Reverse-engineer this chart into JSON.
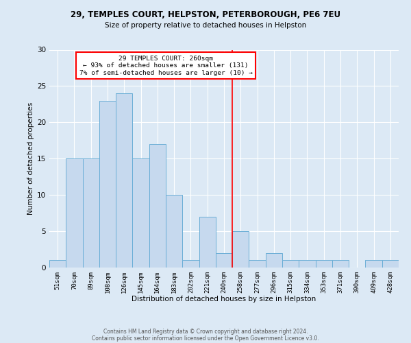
{
  "title1": "29, TEMPLES COURT, HELPSTON, PETERBOROUGH, PE6 7EU",
  "title2": "Size of property relative to detached houses in Helpston",
  "xlabel": "Distribution of detached houses by size in Helpston",
  "ylabel": "Number of detached properties",
  "bar_labels": [
    "51sqm",
    "70sqm",
    "89sqm",
    "108sqm",
    "126sqm",
    "145sqm",
    "164sqm",
    "183sqm",
    "202sqm",
    "221sqm",
    "240sqm",
    "258sqm",
    "277sqm",
    "296sqm",
    "315sqm",
    "334sqm",
    "353sqm",
    "371sqm",
    "390sqm",
    "409sqm",
    "428sqm"
  ],
  "bar_values": [
    1,
    15,
    15,
    23,
    24,
    15,
    17,
    10,
    1,
    7,
    2,
    5,
    1,
    2,
    1,
    1,
    1,
    1,
    0,
    1,
    1
  ],
  "bar_color": "#C6D9EE",
  "bar_edge_color": "#6aaed6",
  "ylim": [
    0,
    30
  ],
  "yticks": [
    0,
    5,
    10,
    15,
    20,
    25,
    30
  ],
  "vline_x_idx": 11,
  "vline_color": "red",
  "annotation_title": "29 TEMPLES COURT: 260sqm",
  "annotation_line1": "← 93% of detached houses are smaller (131)",
  "annotation_line2": "7% of semi-detached houses are larger (10) →",
  "annotation_box_color": "white",
  "annotation_box_edge": "red",
  "footer1": "Contains HM Land Registry data © Crown copyright and database right 2024.",
  "footer2": "Contains public sector information licensed under the Open Government Licence v3.0.",
  "bg_color": "#dce9f5",
  "plot_bg_color": "#dce9f5"
}
